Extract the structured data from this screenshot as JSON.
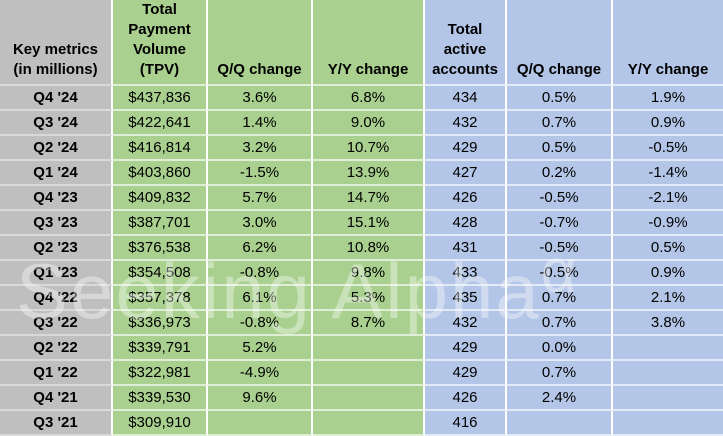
{
  "chart_data": {
    "type": "table",
    "header": [
      "Key metrics (in millions)",
      "Total Payment Volume (TPV)",
      "Q/Q change",
      "Y/Y change",
      "Total active accounts",
      "Q/Q change",
      "Y/Y change"
    ],
    "rows": [
      [
        "Q4 '24",
        "$437,836",
        "3.6%",
        "6.8%",
        "434",
        "0.5%",
        "1.9%"
      ],
      [
        "Q3 '24",
        "$422,641",
        "1.4%",
        "9.0%",
        "432",
        "0.7%",
        "0.9%"
      ],
      [
        "Q2 '24",
        "$416,814",
        "3.2%",
        "10.7%",
        "429",
        "0.5%",
        "-0.5%"
      ],
      [
        "Q1 '24",
        "$403,860",
        "-1.5%",
        "13.9%",
        "427",
        "0.2%",
        "-1.4%"
      ],
      [
        "Q4 '23",
        "$409,832",
        "5.7%",
        "14.7%",
        "426",
        "-0.5%",
        "-2.1%"
      ],
      [
        "Q3 '23",
        "$387,701",
        "3.0%",
        "15.1%",
        "428",
        "-0.7%",
        "-0.9%"
      ],
      [
        "Q2 '23",
        "$376,538",
        "6.2%",
        "10.8%",
        "431",
        "-0.5%",
        "0.5%"
      ],
      [
        "Q1 '23",
        "$354,508",
        "-0.8%",
        "9.8%",
        "433",
        "-0.5%",
        "0.9%"
      ],
      [
        "Q4 '22",
        "$357,378",
        "6.1%",
        "5.3%",
        "435",
        "0.7%",
        "2.1%"
      ],
      [
        "Q3 '22",
        "$336,973",
        "-0.8%",
        "8.7%",
        "432",
        "0.7%",
        "3.8%"
      ],
      [
        "Q2 '22",
        "$339,791",
        "5.2%",
        "",
        "429",
        "0.0%",
        ""
      ],
      [
        "Q1 '22",
        "$322,981",
        "-4.9%",
        "",
        "429",
        "0.7%",
        ""
      ],
      [
        "Q4 '21",
        "$339,530",
        "9.6%",
        "",
        "426",
        "2.4%",
        ""
      ],
      [
        "Q3 '21",
        "$309,910",
        "",
        "",
        "416",
        "",
        ""
      ]
    ]
  },
  "table": {
    "header_display": [
      "Key metrics\n(in millions)",
      "Total\nPayment\nVolume\n(TPV)",
      "Q/Q change",
      "Y/Y change",
      "Total\nactive\naccounts",
      "Q/Q change",
      "Y/Y change"
    ]
  },
  "watermark": {
    "text": "Seeking Alpha",
    "symbol": "α"
  },
  "colors": {
    "gray": "#bfbfbf",
    "green": "#a9d08e",
    "blue": "#b4c6e7",
    "line_gray": "#d9d9d9",
    "line_green": "#dfeed6",
    "line_blue": "#e2eaf7",
    "watermark": "rgba(255,255,255,0.38)"
  }
}
